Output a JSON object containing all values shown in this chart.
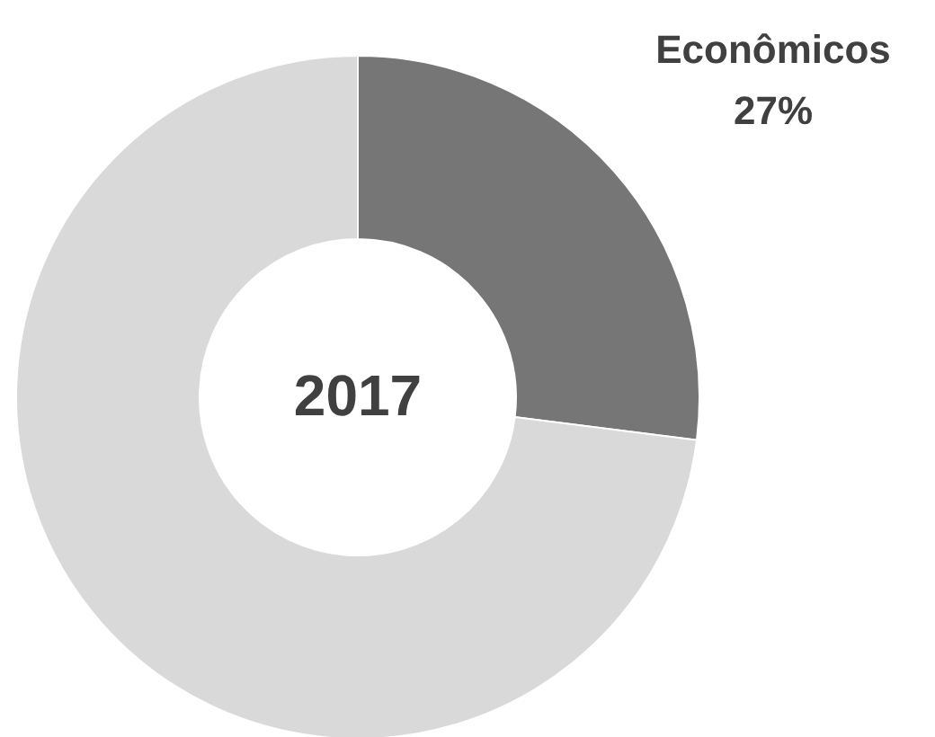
{
  "chart_data": {
    "type": "donut",
    "categories": [
      "Econômicos",
      null
    ],
    "values": [
      27,
      73
    ],
    "colors": [
      "#767676",
      "#d9d9d9"
    ],
    "value_labels": [
      "27%",
      null
    ],
    "annotations": [
      "2017"
    ]
  }
}
